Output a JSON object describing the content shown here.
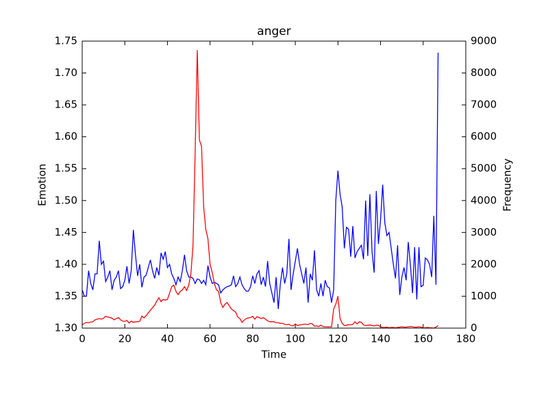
{
  "chart_data": {
    "type": "line",
    "title": "anger",
    "xlabel": "Time",
    "ylabel": "Emotion",
    "y2label": "Frequency",
    "x": [
      0,
      1,
      2,
      3,
      4,
      5,
      6,
      7,
      8,
      9,
      10,
      11,
      12,
      13,
      14,
      15,
      16,
      17,
      18,
      19,
      20,
      21,
      22,
      23,
      24,
      25,
      26,
      27,
      28,
      29,
      30,
      31,
      32,
      33,
      34,
      35,
      36,
      37,
      38,
      39,
      40,
      41,
      42,
      43,
      44,
      45,
      46,
      47,
      48,
      49,
      50,
      51,
      52,
      53,
      54,
      55,
      56,
      57,
      58,
      59,
      60,
      61,
      62,
      63,
      64,
      65,
      66,
      67,
      68,
      69,
      70,
      71,
      72,
      73,
      74,
      75,
      76,
      77,
      78,
      79,
      80,
      81,
      82,
      83,
      84,
      85,
      86,
      87,
      88,
      89,
      90,
      91,
      92,
      93,
      94,
      95,
      96,
      97,
      98,
      99,
      100,
      101,
      102,
      103,
      104,
      105,
      106,
      107,
      108,
      109,
      110,
      111,
      112,
      113,
      114,
      115,
      116,
      117,
      118,
      119,
      120,
      121,
      122,
      123,
      124,
      125,
      126,
      127,
      128,
      129,
      130,
      131,
      132,
      133,
      134,
      135,
      136,
      137,
      138,
      139,
      140,
      141,
      142,
      143,
      144,
      145,
      146,
      147,
      148,
      149,
      150,
      151,
      152,
      153,
      154,
      155,
      156,
      157,
      158,
      159,
      160,
      161,
      162,
      163,
      164,
      165,
      166,
      167
    ],
    "series": [
      {
        "color": "#0000ff",
        "axis": "y",
        "values": [
          1.36,
          1.35,
          1.35,
          1.39,
          1.37,
          1.36,
          1.385,
          1.385,
          1.437,
          1.4,
          1.405,
          1.373,
          1.38,
          1.39,
          1.36,
          1.375,
          1.38,
          1.39,
          1.362,
          1.365,
          1.375,
          1.397,
          1.37,
          1.39,
          1.454,
          1.415,
          1.382,
          1.4,
          1.364,
          1.38,
          1.383,
          1.395,
          1.407,
          1.39,
          1.378,
          1.395,
          1.383,
          1.418,
          1.408,
          1.42,
          1.395,
          1.4,
          1.385,
          1.378,
          1.368,
          1.38,
          1.373,
          1.39,
          1.415,
          1.39,
          1.38,
          1.38,
          1.378,
          1.37,
          1.377,
          1.376,
          1.37,
          1.375,
          1.368,
          1.398,
          1.38,
          1.37,
          1.372,
          1.37,
          1.368,
          1.355,
          1.36,
          1.363,
          1.365,
          1.366,
          1.368,
          1.382,
          1.365,
          1.37,
          1.38,
          1.368,
          1.362,
          1.358,
          1.358,
          1.365,
          1.382,
          1.37,
          1.385,
          1.39,
          1.368,
          1.38,
          1.365,
          1.405,
          1.37,
          1.355,
          1.34,
          1.38,
          1.33,
          1.37,
          1.395,
          1.37,
          1.385,
          1.44,
          1.36,
          1.385,
          1.405,
          1.425,
          1.4,
          1.385,
          1.37,
          1.395,
          1.34,
          1.385,
          1.375,
          1.422,
          1.36,
          1.35,
          1.37,
          1.35,
          1.375,
          1.365,
          1.363,
          1.34,
          1.36,
          1.5,
          1.547,
          1.51,
          1.49,
          1.425,
          1.458,
          1.455,
          1.412,
          1.46,
          1.41,
          1.42,
          1.425,
          1.43,
          1.408,
          1.5,
          1.413,
          1.51,
          1.42,
          1.387,
          1.515,
          1.432,
          1.47,
          1.525,
          1.465,
          1.445,
          1.45,
          1.425,
          1.4,
          1.378,
          1.43,
          1.352,
          1.38,
          1.395,
          1.375,
          1.435,
          1.4,
          1.355,
          1.427,
          1.345,
          1.427,
          1.365,
          1.367,
          1.41,
          1.407,
          1.4,
          1.38,
          1.476,
          1.368,
          1.732
        ]
      },
      {
        "color": "#ff0000",
        "axis": "y2",
        "values": [
          100,
          150,
          180,
          170,
          190,
          200,
          260,
          280,
          300,
          280,
          310,
          370,
          350,
          330,
          310,
          260,
          300,
          330,
          260,
          220,
          210,
          240,
          160,
          220,
          180,
          200,
          200,
          210,
          380,
          320,
          390,
          480,
          560,
          640,
          720,
          850,
          950,
          830,
          900,
          880,
          900,
          1100,
          1300,
          1350,
          1150,
          1050,
          1150,
          1200,
          1300,
          1180,
          1350,
          1700,
          2600,
          5500,
          8720,
          5900,
          5700,
          3800,
          3100,
          2800,
          2000,
          1750,
          1400,
          1200,
          1150,
          800,
          650,
          750,
          800,
          700,
          600,
          550,
          500,
          350,
          300,
          180,
          250,
          300,
          320,
          330,
          370,
          280,
          360,
          330,
          300,
          330,
          280,
          230,
          200,
          200,
          200,
          170,
          170,
          150,
          150,
          120,
          110,
          120,
          80,
          70,
          130,
          80,
          100,
          110,
          120,
          120,
          110,
          150,
          130,
          60,
          70,
          50,
          90,
          50,
          40,
          40,
          40,
          40,
          600,
          750,
          1000,
          300,
          150,
          80,
          90,
          110,
          100,
          120,
          200,
          130,
          200,
          180,
          100,
          80,
          90,
          100,
          80,
          70,
          90,
          90,
          40,
          20,
          20,
          30,
          10,
          20,
          20,
          10,
          20,
          30,
          40,
          30,
          30,
          40,
          50,
          40,
          30,
          30,
          40,
          30,
          10,
          10,
          20,
          10,
          10,
          0,
          30,
          80
        ]
      }
    ],
    "xlim": [
      0,
      180
    ],
    "xticks": [
      0,
      20,
      40,
      60,
      80,
      100,
      120,
      140,
      160,
      180
    ],
    "ylim": [
      1.3,
      1.75
    ],
    "yticks": [
      {
        "value": 1.3,
        "label": "1.30"
      },
      {
        "value": 1.35,
        "label": "1.35"
      },
      {
        "value": 1.4,
        "label": "1.40"
      },
      {
        "value": 1.45,
        "label": "1.45"
      },
      {
        "value": 1.5,
        "label": "1.50"
      },
      {
        "value": 1.55,
        "label": "1.55"
      },
      {
        "value": 1.6,
        "label": "1.60"
      },
      {
        "value": 1.65,
        "label": "1.65"
      },
      {
        "value": 1.7,
        "label": "1.70"
      },
      {
        "value": 1.75,
        "label": "1.75"
      }
    ],
    "y2lim": [
      0,
      9000
    ],
    "y2ticks": [
      0,
      1000,
      2000,
      3000,
      4000,
      5000,
      6000,
      7000,
      8000,
      9000
    ]
  }
}
